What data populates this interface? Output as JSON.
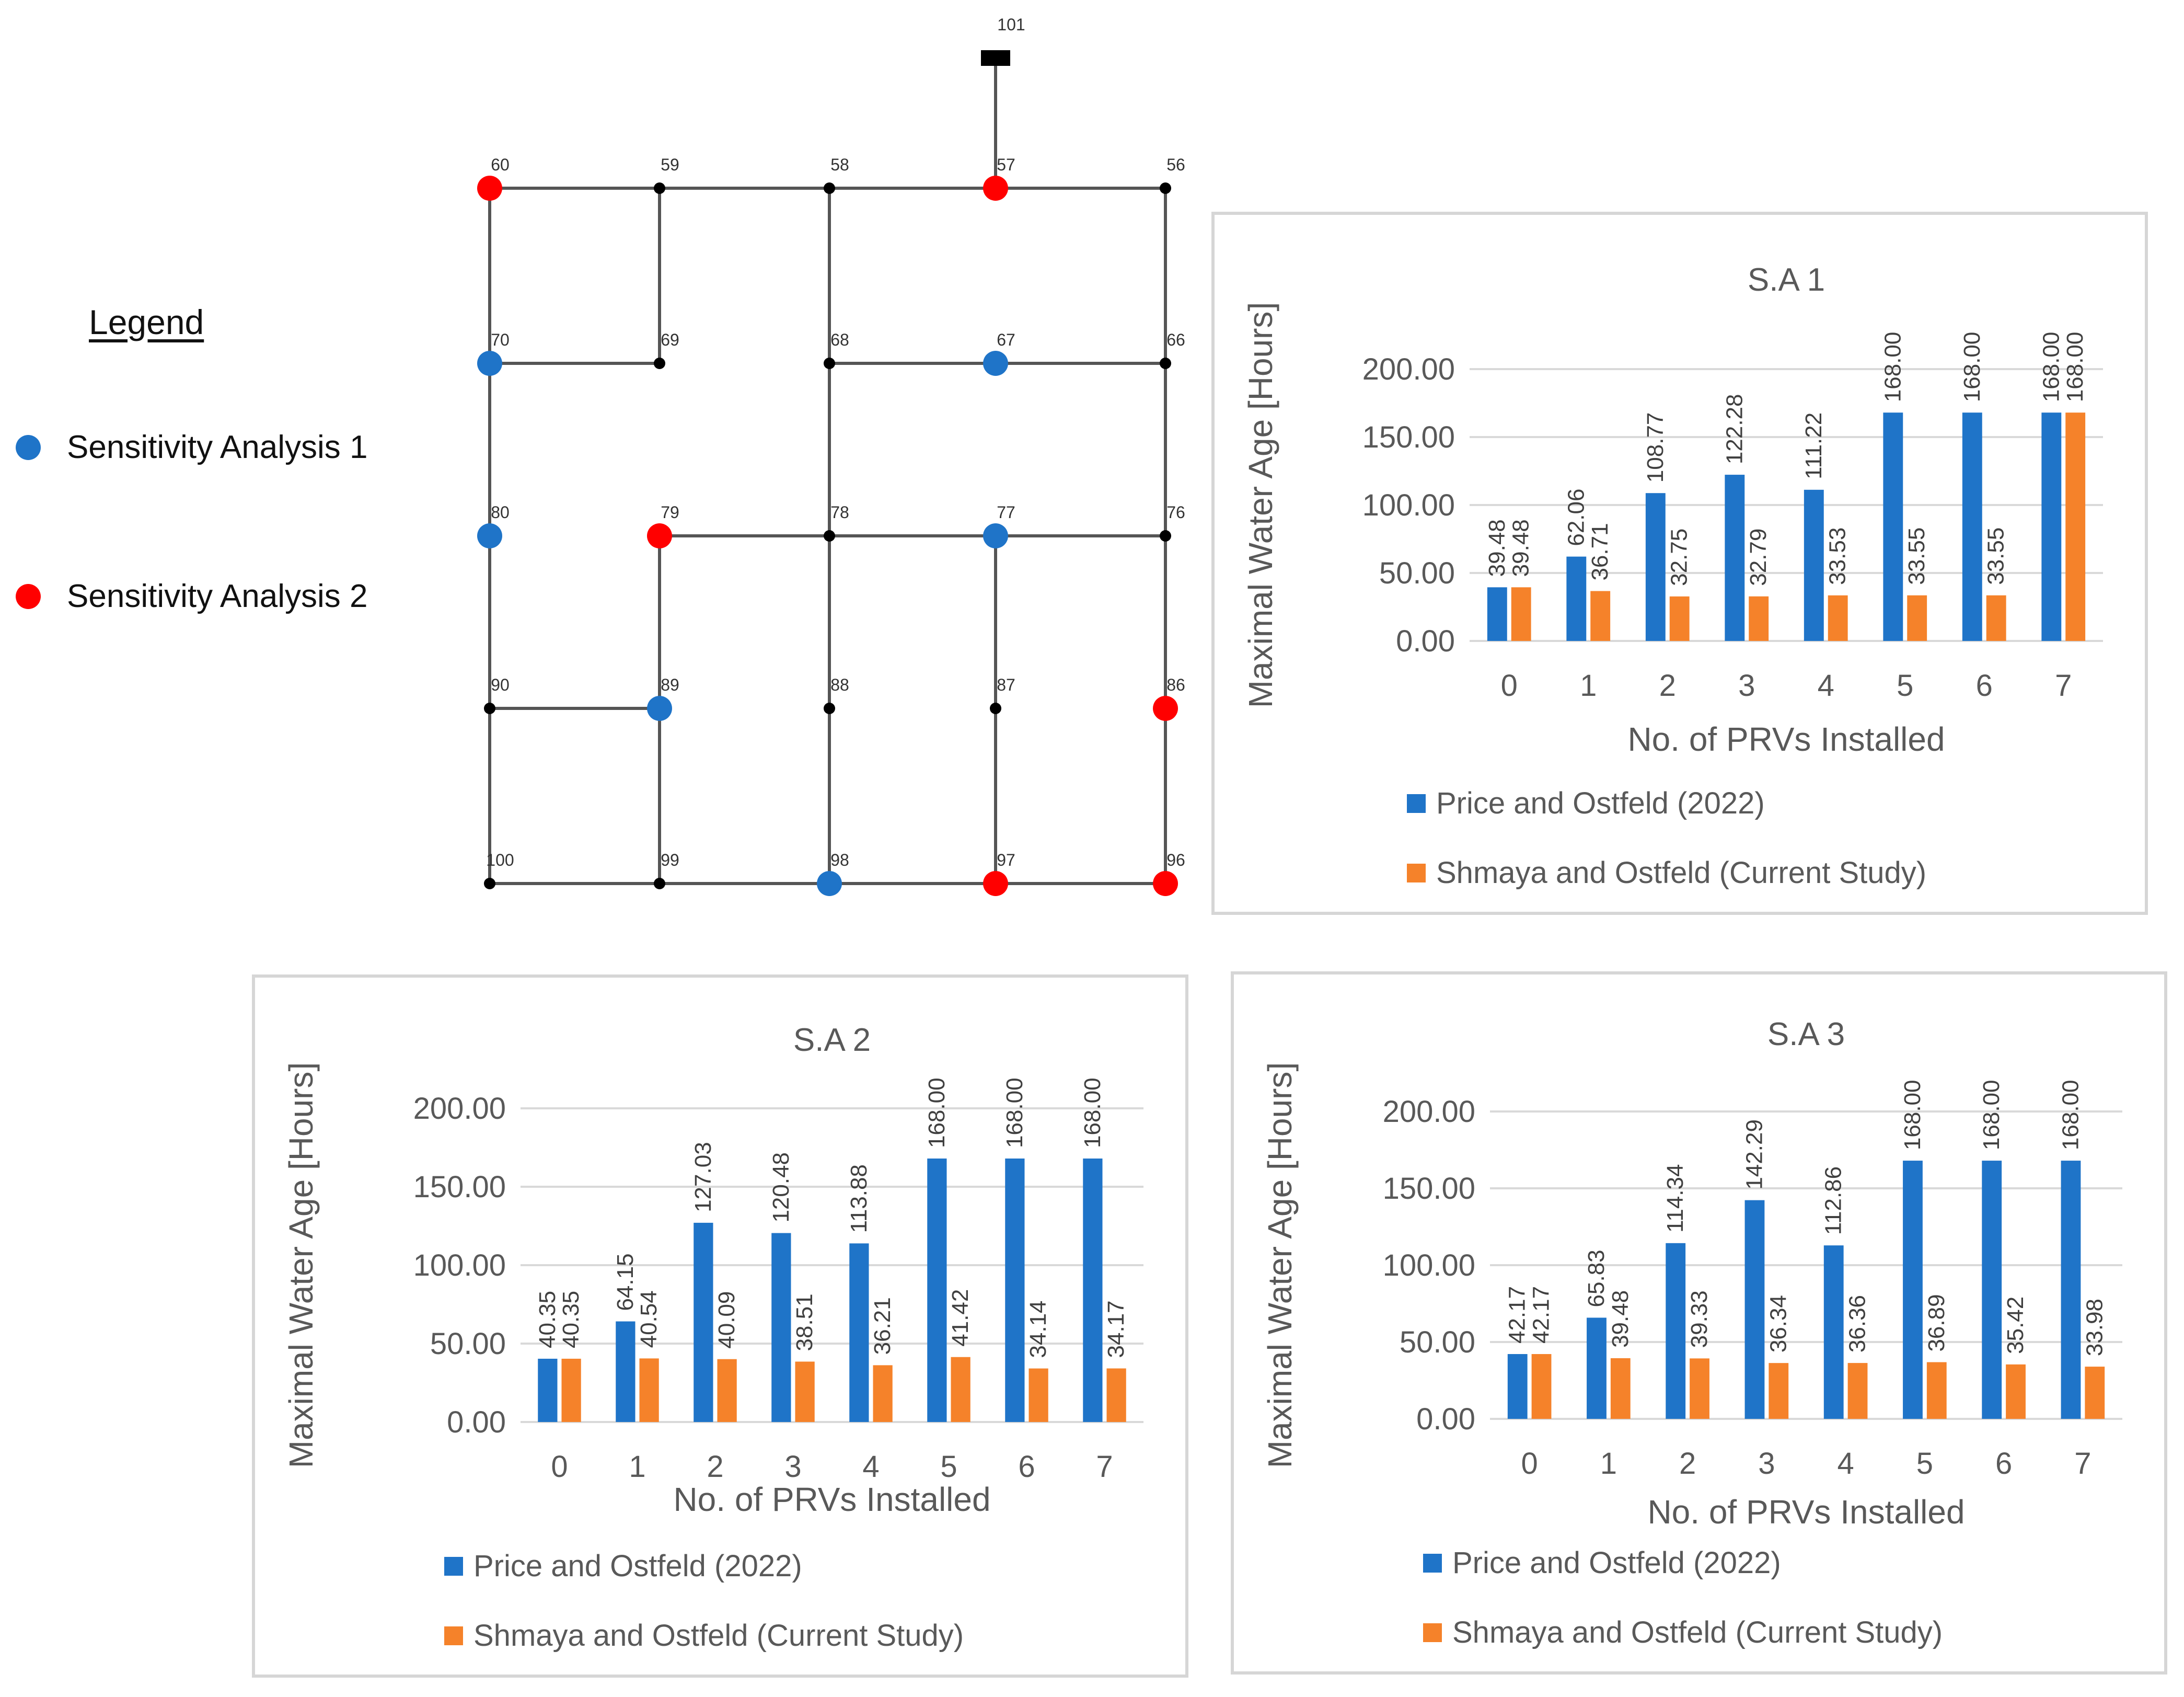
{
  "colors": {
    "sa1": "#1f74c8",
    "sa2": "#ff0000",
    "junction": "#000000",
    "pipe": "#555555",
    "series_price": "#1f74c8",
    "series_shmaya": "#f5822a"
  },
  "legend": {
    "title": "Legend",
    "items": [
      {
        "label": "Sensitivity Analysis 1",
        "color": "#1f74c8"
      },
      {
        "label": "Sensitivity Analysis 2",
        "color": "#ff0000"
      }
    ]
  },
  "network": {
    "reservoir": {
      "label": "101"
    },
    "rows": [
      [
        "60",
        "59",
        "58",
        "57",
        "56"
      ],
      [
        "70",
        "69",
        "68",
        "67",
        "66"
      ],
      [
        "80",
        "79",
        "78",
        "77",
        "76"
      ],
      [
        "90",
        "89",
        "88",
        "87",
        "86"
      ],
      [
        "100",
        "99",
        "98",
        "97",
        "96"
      ]
    ],
    "sensitivity_analysis_1_nodes": [
      "70",
      "67",
      "80",
      "77",
      "89",
      "98"
    ],
    "sensitivity_analysis_2_nodes": [
      "60",
      "57",
      "79",
      "86",
      "97",
      "96"
    ],
    "pipes": [
      [
        "101",
        "57"
      ],
      [
        "60",
        "59"
      ],
      [
        "59",
        "58"
      ],
      [
        "58",
        "57"
      ],
      [
        "57",
        "56"
      ],
      [
        "70",
        "69"
      ],
      [
        "68",
        "67"
      ],
      [
        "67",
        "66"
      ],
      [
        "79",
        "78"
      ],
      [
        "78",
        "77"
      ],
      [
        "77",
        "76"
      ],
      [
        "90",
        "89"
      ],
      [
        "100",
        "99"
      ],
      [
        "99",
        "98"
      ],
      [
        "98",
        "97"
      ],
      [
        "97",
        "96"
      ],
      [
        "60",
        "70"
      ],
      [
        "70",
        "80"
      ],
      [
        "80",
        "90"
      ],
      [
        "90",
        "100"
      ],
      [
        "59",
        "69"
      ],
      [
        "79",
        "89"
      ],
      [
        "89",
        "99"
      ],
      [
        "58",
        "68"
      ],
      [
        "68",
        "78"
      ],
      [
        "78",
        "88"
      ],
      [
        "88",
        "98"
      ],
      [
        "77",
        "87"
      ],
      [
        "87",
        "97"
      ],
      [
        "56",
        "66"
      ],
      [
        "66",
        "76"
      ],
      [
        "76",
        "86"
      ],
      [
        "86",
        "96"
      ]
    ]
  },
  "chart_data": [
    {
      "type": "bar",
      "title": "S.A 1",
      "xlabel": "No. of PRVs Installed",
      "ylabel": "Maximal Water Age [Hours]",
      "ylim": [
        0,
        200
      ],
      "yticks": [
        "0.00",
        "50.00",
        "100.00",
        "150.00",
        "200.00"
      ],
      "categories": [
        "0",
        "1",
        "2",
        "3",
        "4",
        "5",
        "6",
        "7"
      ],
      "series": [
        {
          "name": "Price and Ostfeld (2022)",
          "values": [
            39.48,
            62.06,
            108.77,
            122.28,
            111.22,
            168.0,
            168.0,
            168.0
          ],
          "labels": [
            "39.48",
            "62.06",
            "108.77",
            "122.28",
            "111.22",
            "168.00",
            "168.00",
            "168.00"
          ]
        },
        {
          "name": "Shmaya and Ostfeld (Current Study)",
          "values": [
            39.48,
            36.71,
            32.75,
            32.79,
            33.53,
            33.55,
            33.55,
            168.0
          ],
          "labels": [
            "39.48",
            "36.71",
            "32.75",
            "32.79",
            "33.53",
            "33.55",
            "33.55",
            "168.00"
          ]
        }
      ]
    },
    {
      "type": "bar",
      "title": "S.A 2",
      "xlabel": "No. of PRVs Installed",
      "ylabel": "Maximal Water Age [Hours]",
      "ylim": [
        0,
        200
      ],
      "yticks": [
        "0.00",
        "50.00",
        "100.00",
        "150.00",
        "200.00"
      ],
      "categories": [
        "0",
        "1",
        "2",
        "3",
        "4",
        "5",
        "6",
        "7"
      ],
      "series": [
        {
          "name": "Price and Ostfeld (2022)",
          "values": [
            40.35,
            64.15,
            127.03,
            120.48,
            113.88,
            168.0,
            168.0,
            168.0
          ],
          "labels": [
            "40.35",
            "64.15",
            "127.03",
            "120.48",
            "113.88",
            "168.00",
            "168.00",
            "168.00"
          ]
        },
        {
          "name": "Shmaya and Ostfeld (Current Study)",
          "values": [
            40.35,
            40.54,
            40.09,
            38.51,
            36.21,
            41.42,
            34.14,
            34.17
          ],
          "labels": [
            "40.35",
            "40.54",
            "40.09",
            "38.51",
            "36.21",
            "41.42",
            "34.14",
            "34.17"
          ]
        }
      ]
    },
    {
      "type": "bar",
      "title": "S.A 3",
      "xlabel": "No. of PRVs Installed",
      "ylabel": "Maximal Water Age [Hours]",
      "ylim": [
        0,
        200
      ],
      "yticks": [
        "0.00",
        "50.00",
        "100.00",
        "150.00",
        "200.00"
      ],
      "categories": [
        "0",
        "1",
        "2",
        "3",
        "4",
        "5",
        "6",
        "7"
      ],
      "series": [
        {
          "name": "Price and Ostfeld (2022)",
          "values": [
            42.17,
            65.83,
            114.34,
            142.29,
            112.86,
            168.0,
            168.0,
            168.0
          ],
          "labels": [
            "42.17",
            "65.83",
            "114.34",
            "142.29",
            "112.86",
            "168.00",
            "168.00",
            "168.00"
          ]
        },
        {
          "name": "Shmaya and Ostfeld (Current Study)",
          "values": [
            42.17,
            39.48,
            39.33,
            36.34,
            36.36,
            36.89,
            35.42,
            33.98
          ],
          "labels": [
            "42.17",
            "39.48",
            "39.33",
            "36.34",
            "36.36",
            "36.89",
            "35.42",
            "33.98"
          ]
        }
      ]
    }
  ]
}
